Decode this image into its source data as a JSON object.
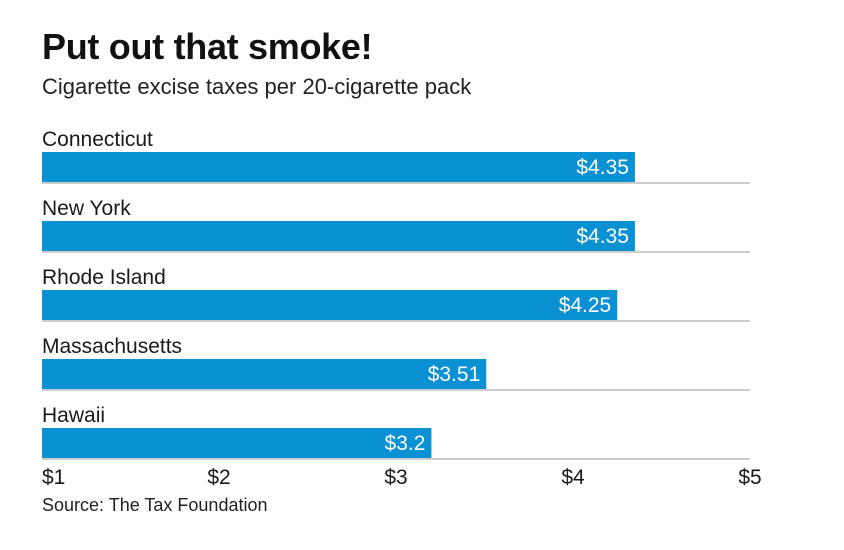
{
  "chart_data": {
    "type": "bar",
    "orientation": "horizontal",
    "title": "Put out that smoke!",
    "subtitle": "Cigarette excise taxes per 20-cigarette pack",
    "categories": [
      "Connecticut",
      "New York",
      "Rhode Island",
      "Massachusetts",
      "Hawaii"
    ],
    "values": [
      4.35,
      4.35,
      4.25,
      3.51,
      3.2
    ],
    "value_labels": [
      "$4.35",
      "$4.35",
      "$4.25",
      "$3.51",
      "$3.2"
    ],
    "xlim": [
      1,
      5
    ],
    "x_ticks": [
      1,
      2,
      3,
      4,
      5
    ],
    "x_tick_labels": [
      "$1",
      "$2",
      "$3",
      "$4",
      "$5"
    ],
    "bar_color": "#0a91d4",
    "divider_color": "#9a9a9a",
    "grid": false,
    "legend": "none",
    "source": "Source: The Tax Foundation"
  }
}
